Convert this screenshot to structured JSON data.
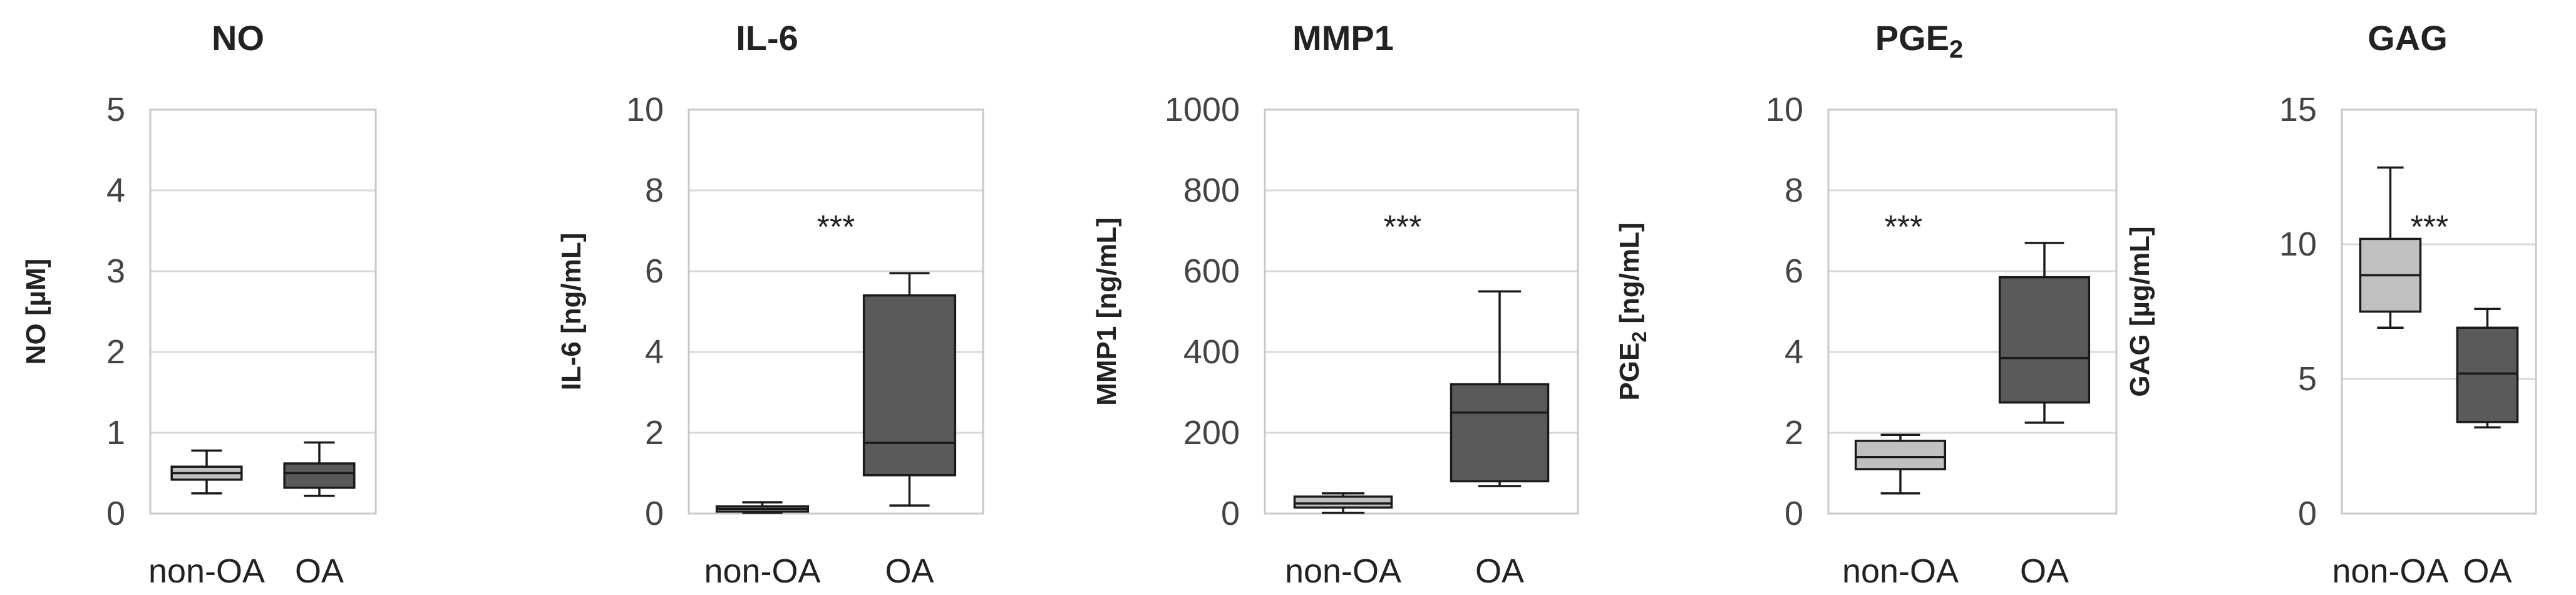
{
  "chart_data": [
    {
      "type": "box",
      "title": "NO",
      "ylabel": "NO  [µM]",
      "ylim": [
        0,
        5
      ],
      "yticks": [
        0,
        1,
        2,
        3,
        4,
        5
      ],
      "categories": [
        "non-OA",
        "OA"
      ],
      "boxes": [
        {
          "category": "non-OA",
          "min": 0.25,
          "q1": 0.42,
          "median": 0.5,
          "q3": 0.58,
          "max": 0.78,
          "color": "#c0c0c0"
        },
        {
          "category": "OA",
          "min": 0.22,
          "q1": 0.32,
          "median": 0.5,
          "q3": 0.62,
          "max": 0.88,
          "color": "#5a5a5a"
        }
      ],
      "annotation": ""
    },
    {
      "type": "box",
      "title": "IL-6",
      "ylabel": "IL-6  [ng/mL]",
      "ylim": [
        0,
        10
      ],
      "yticks": [
        0,
        2,
        4,
        6,
        8,
        10
      ],
      "categories": [
        "non-OA",
        "OA"
      ],
      "boxes": [
        {
          "category": "non-OA",
          "min": 0.02,
          "q1": 0.05,
          "median": 0.12,
          "q3": 0.18,
          "max": 0.28,
          "color": "#c0c0c0"
        },
        {
          "category": "OA",
          "min": 0.2,
          "q1": 0.95,
          "median": 1.75,
          "q3": 5.4,
          "max": 5.95,
          "color": "#5a5a5a"
        }
      ],
      "annotation": "***"
    },
    {
      "type": "box",
      "title": "MMP1",
      "ylabel": "MMP1  [ng/mL]",
      "ylim": [
        0,
        1000
      ],
      "yticks": [
        0,
        200,
        400,
        600,
        800,
        1000
      ],
      "categories": [
        "non-OA",
        "OA"
      ],
      "boxes": [
        {
          "category": "non-OA",
          "min": 2,
          "q1": 15,
          "median": 25,
          "q3": 42,
          "max": 50,
          "color": "#c0c0c0"
        },
        {
          "category": "OA",
          "min": 68,
          "q1": 80,
          "median": 250,
          "q3": 320,
          "max": 550,
          "color": "#5a5a5a"
        }
      ],
      "annotation": "***"
    },
    {
      "type": "box",
      "title": "PGE",
      "title_sub": "2",
      "ylabel": "PGE",
      "ylabel_sub": "2",
      "ylabel_suffix": "  [ng/mL]",
      "ylim": [
        0,
        10
      ],
      "yticks": [
        0,
        2,
        4,
        6,
        8,
        10
      ],
      "categories": [
        "non-OA",
        "OA"
      ],
      "boxes": [
        {
          "category": "non-OA",
          "min": 0.5,
          "q1": 1.1,
          "median": 1.4,
          "q3": 1.8,
          "max": 1.95,
          "color": "#c0c0c0"
        },
        {
          "category": "OA",
          "min": 2.25,
          "q1": 2.75,
          "median": 3.85,
          "q3": 5.85,
          "max": 6.7,
          "color": "#5a5a5a"
        }
      ],
      "annotation": "***"
    },
    {
      "type": "box",
      "title": "GAG",
      "ylabel": "GAG [µg/mL]",
      "ylim": [
        0,
        15
      ],
      "yticks": [
        0,
        5,
        10,
        15
      ],
      "categories": [
        "non-OA",
        "OA"
      ],
      "boxes": [
        {
          "category": "non-OA",
          "min": 6.9,
          "q1": 7.5,
          "median": 8.85,
          "q3": 10.2,
          "max": 12.85,
          "color": "#c0c0c0"
        },
        {
          "category": "OA",
          "min": 3.2,
          "q1": 3.4,
          "median": 5.2,
          "q3": 6.9,
          "max": 7.6,
          "color": "#5a5a5a"
        }
      ],
      "annotation": "***"
    }
  ]
}
